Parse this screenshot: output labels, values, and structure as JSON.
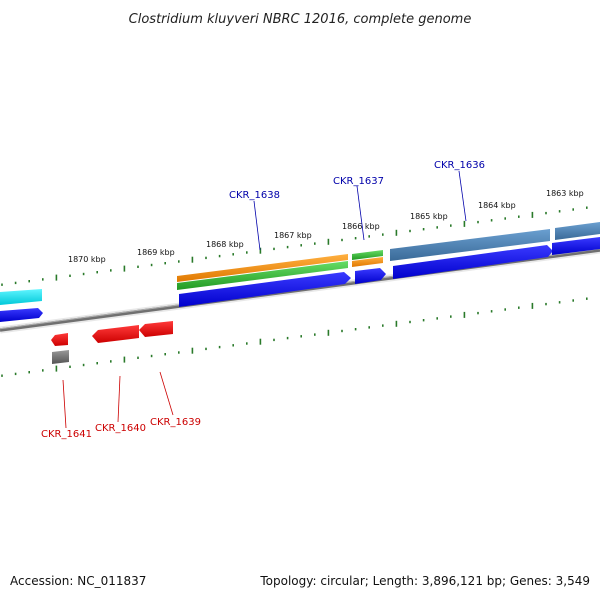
{
  "title": "Clostridium kluyveri NBRC 12016, complete genome",
  "accession_text": "Accession: NC_011837",
  "topology_text": "Topology: circular; Length: 3,896,121 bp; Genes: 3,549",
  "kbp_labels": [
    "1870 kbp",
    "1869 kbp",
    "1868 kbp",
    "1867 kbp",
    "1866 kbp",
    "1865 kbp",
    "1864 kbp",
    "1863 kbp"
  ],
  "upper_labels": [
    "CKR_1638",
    "CKR_1637",
    "CKR_1636"
  ],
  "lower_labels": [
    "CKR_1641",
    "CKR_1640",
    "CKR_1639"
  ],
  "colors": {
    "forward_cds": "#0000ee",
    "reverse_cds": "#ee0000",
    "orange_feature": "#ff8c00",
    "green_feature": "#33bb33",
    "steel_feature": "#4a7fb0",
    "cyan_feature": "#00e5ee",
    "gray_feature": "#666666",
    "backbone": "#777777",
    "tick": "#2a7a2a",
    "upper_label": "#0000aa",
    "lower_label": "#cc0000"
  }
}
